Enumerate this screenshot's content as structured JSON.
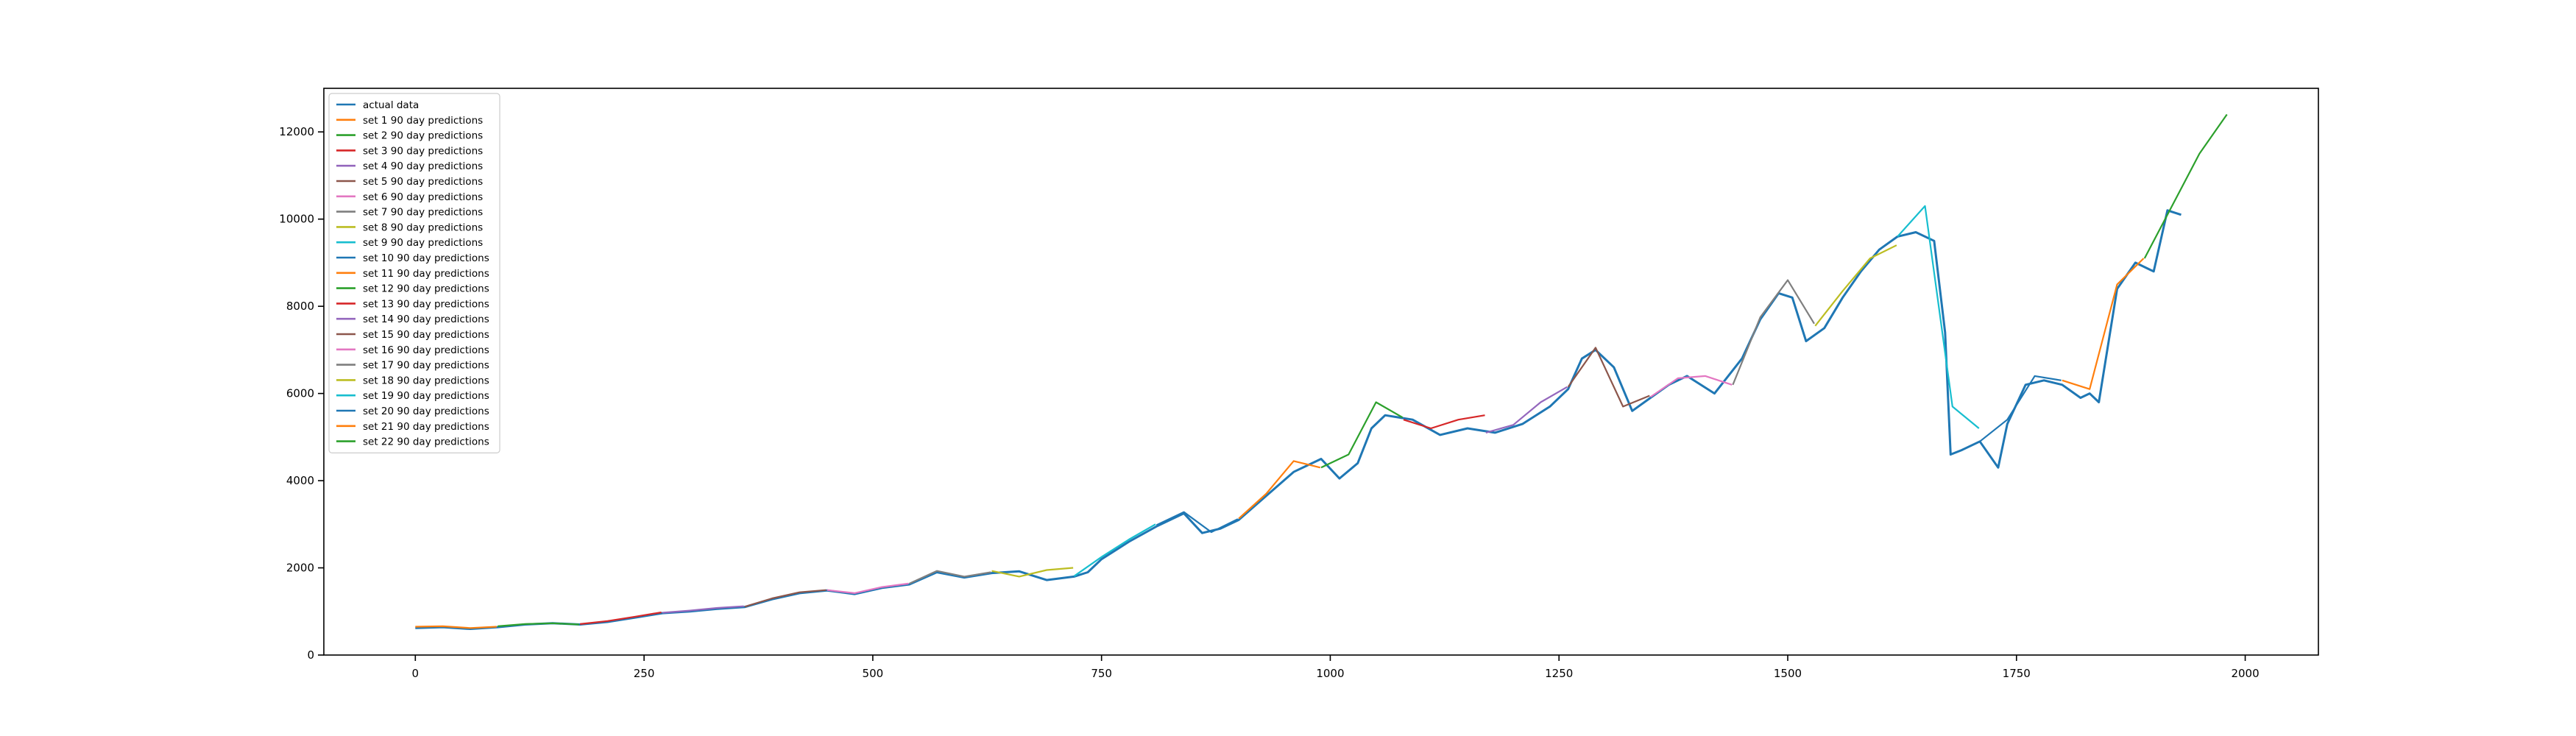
{
  "chart_data": {
    "type": "line",
    "title": "",
    "xlabel": "",
    "ylabel": "",
    "xlim": [
      -100,
      2080
    ],
    "ylim": [
      0,
      13000
    ],
    "xticks": [
      0,
      250,
      500,
      750,
      1000,
      1250,
      1500,
      1750,
      2000
    ],
    "yticks": [
      0,
      2000,
      4000,
      6000,
      8000,
      10000,
      12000
    ],
    "legend_position": "top-left",
    "colors": {
      "actual": "#1f77b4",
      "cycle": [
        "#ff7f0e",
        "#2ca02c",
        "#d62728",
        "#9467bd",
        "#8c564b",
        "#e377c2",
        "#7f7f7f",
        "#bcbd22",
        "#17becf",
        "#1f77b4"
      ]
    },
    "actual": {
      "name": "actual data",
      "x": [
        0,
        30,
        60,
        90,
        120,
        150,
        180,
        210,
        240,
        270,
        300,
        330,
        360,
        390,
        420,
        450,
        480,
        510,
        540,
        570,
        600,
        630,
        660,
        690,
        720,
        735,
        750,
        780,
        810,
        840,
        860,
        880,
        900,
        930,
        960,
        990,
        1010,
        1030,
        1045,
        1060,
        1090,
        1120,
        1150,
        1180,
        1210,
        1240,
        1260,
        1275,
        1290,
        1310,
        1330,
        1350,
        1370,
        1390,
        1420,
        1450,
        1470,
        1490,
        1505,
        1520,
        1540,
        1560,
        1580,
        1600,
        1620,
        1640,
        1660,
        1672,
        1678,
        1690,
        1710,
        1730,
        1740,
        1760,
        1780,
        1800,
        1820,
        1830,
        1840,
        1860,
        1880,
        1900,
        1915,
        1930
      ],
      "y": [
        620,
        640,
        600,
        640,
        700,
        730,
        700,
        760,
        860,
        960,
        1000,
        1060,
        1100,
        1280,
        1420,
        1480,
        1400,
        1540,
        1620,
        1900,
        1780,
        1880,
        1920,
        1720,
        1800,
        1900,
        2200,
        2600,
        2950,
        3250,
        2800,
        2900,
        3100,
        3650,
        4200,
        4500,
        4050,
        4400,
        5200,
        5500,
        5400,
        5050,
        5200,
        5100,
        5300,
        5700,
        6100,
        6800,
        7000,
        6600,
        5600,
        5900,
        6200,
        6400,
        6000,
        6800,
        7700,
        8300,
        8200,
        7200,
        7500,
        8200,
        8800,
        9300,
        9600,
        9700,
        9500,
        7400,
        4600,
        4700,
        4900,
        4300,
        5300,
        6200,
        6300,
        6200,
        5900,
        6000,
        5800,
        8400,
        9000,
        8800,
        10200,
        10100
      ]
    },
    "series": [
      {
        "name": "set 1 90 day predictions",
        "x": [
          0,
          30,
          60,
          89
        ],
        "y": [
          650,
          660,
          620,
          650
        ]
      },
      {
        "name": "set 2 90 day predictions",
        "x": [
          90,
          120,
          150,
          179
        ],
        "y": [
          660,
          710,
          730,
          700
        ]
      },
      {
        "name": "set 3 90 day predictions",
        "x": [
          180,
          210,
          240,
          269
        ],
        "y": [
          710,
          780,
          880,
          980
        ]
      },
      {
        "name": "set 4 90 day predictions",
        "x": [
          270,
          300,
          330,
          359
        ],
        "y": [
          970,
          1020,
          1080,
          1120
        ]
      },
      {
        "name": "set 5 90 day predictions",
        "x": [
          360,
          390,
          420,
          449
        ],
        "y": [
          1110,
          1300,
          1440,
          1490
        ]
      },
      {
        "name": "set 6 90 day predictions",
        "x": [
          450,
          480,
          510,
          539
        ],
        "y": [
          1490,
          1420,
          1560,
          1640
        ]
      },
      {
        "name": "set 7 90 day predictions",
        "x": [
          540,
          570,
          600,
          629
        ],
        "y": [
          1640,
          1930,
          1800,
          1900
        ]
      },
      {
        "name": "set 8 90 day predictions",
        "x": [
          630,
          660,
          690,
          719
        ],
        "y": [
          1930,
          1800,
          1950,
          2000
        ]
      },
      {
        "name": "set 9 90 day predictions",
        "x": [
          720,
          750,
          780,
          809
        ],
        "y": [
          1810,
          2250,
          2650,
          3000
        ]
      },
      {
        "name": "set 10 90 day predictions",
        "x": [
          810,
          840,
          870,
          899
        ],
        "y": [
          2980,
          3280,
          2820,
          3120
        ]
      },
      {
        "name": "set 11 90 day predictions",
        "x": [
          900,
          930,
          960,
          989
        ],
        "y": [
          3130,
          3700,
          4450,
          4300
        ]
      },
      {
        "name": "set 12 90 day predictions",
        "x": [
          990,
          1020,
          1050,
          1079
        ],
        "y": [
          4300,
          4600,
          5800,
          5450
        ]
      },
      {
        "name": "set 13 90 day predictions",
        "x": [
          1080,
          1110,
          1140,
          1169
        ],
        "y": [
          5400,
          5200,
          5400,
          5500
        ]
      },
      {
        "name": "set 14 90 day predictions",
        "x": [
          1170,
          1200,
          1230,
          1259
        ],
        "y": [
          5100,
          5280,
          5800,
          6150
        ]
      },
      {
        "name": "set 15 90 day predictions",
        "x": [
          1260,
          1290,
          1320,
          1349
        ],
        "y": [
          6150,
          7050,
          5700,
          5950
        ]
      },
      {
        "name": "set 16 90 day predictions",
        "x": [
          1350,
          1380,
          1410,
          1439
        ],
        "y": [
          5920,
          6350,
          6400,
          6200
        ]
      },
      {
        "name": "set 17 90 day predictions",
        "x": [
          1440,
          1470,
          1500,
          1529
        ],
        "y": [
          6200,
          7750,
          8600,
          7600
        ]
      },
      {
        "name": "set 18 90 day predictions",
        "x": [
          1530,
          1560,
          1590,
          1619
        ],
        "y": [
          7550,
          8350,
          9100,
          9400
        ]
      },
      {
        "name": "set 19 90 day predictions",
        "x": [
          1620,
          1650,
          1680,
          1709
        ],
        "y": [
          9600,
          10300,
          5700,
          5200
        ]
      },
      {
        "name": "set 20 90 day predictions",
        "x": [
          1710,
          1740,
          1770,
          1799
        ],
        "y": [
          4900,
          5400,
          6400,
          6300
        ]
      },
      {
        "name": "set 21 90 day predictions",
        "x": [
          1800,
          1830,
          1860,
          1889
        ],
        "y": [
          6300,
          6100,
          8500,
          9100
        ]
      },
      {
        "name": "set 22 90 day predictions",
        "x": [
          1890,
          1920,
          1950,
          1980
        ],
        "y": [
          9100,
          10300,
          11500,
          12400
        ]
      }
    ]
  }
}
